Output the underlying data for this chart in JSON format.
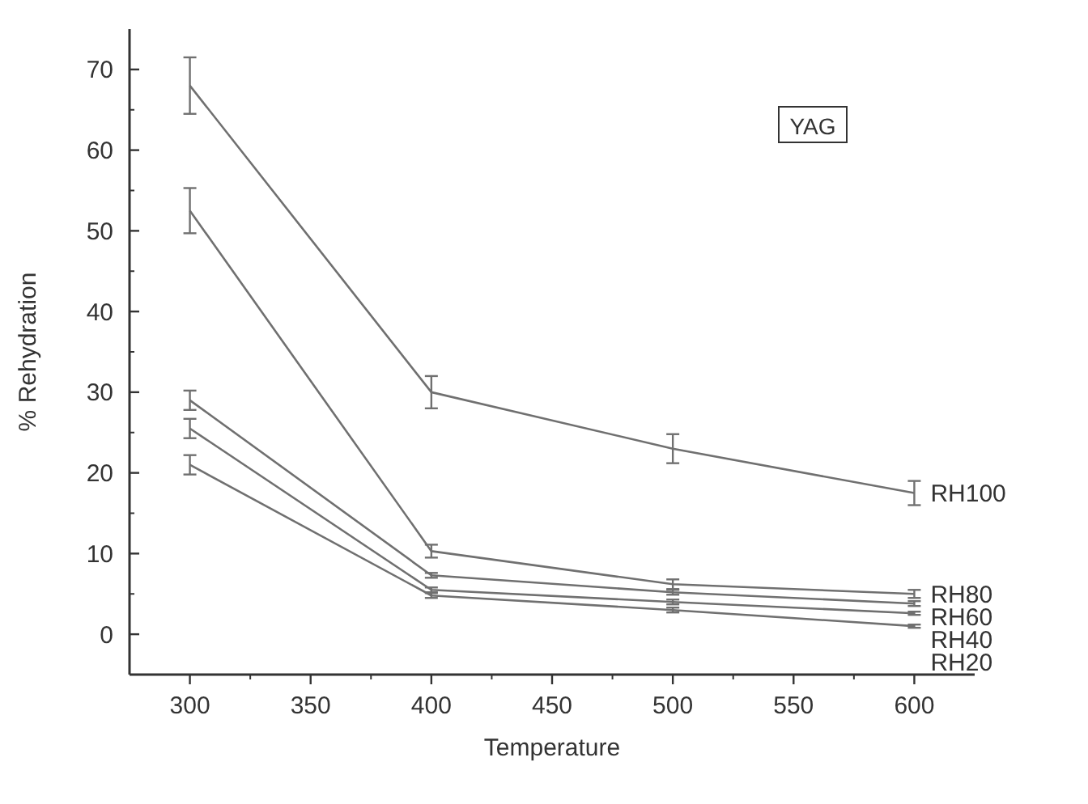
{
  "chart_data": {
    "type": "line",
    "xlabel": "Temperature",
    "ylabel": "% Rehydration",
    "x": [
      300,
      400,
      500,
      600
    ],
    "xlim": [
      275,
      625
    ],
    "xticks": [
      300,
      350,
      400,
      450,
      500,
      550,
      600
    ],
    "ylim": [
      -5,
      75
    ],
    "yticks": [
      0,
      10,
      20,
      30,
      40,
      50,
      60,
      70
    ],
    "grid": false,
    "marker": "none",
    "line_style": "solid",
    "annotations": [
      "YAG"
    ],
    "series": [
      {
        "name": "RH100",
        "color": "#707070",
        "values": [
          68,
          30,
          23,
          17.5
        ],
        "errors": [
          3.5,
          2,
          1.8,
          1.5
        ]
      },
      {
        "name": "RH80",
        "color": "#707070",
        "values": [
          52.5,
          10.3,
          6.2,
          5.0
        ],
        "errors": [
          2.8,
          0.8,
          0.6,
          0.5
        ]
      },
      {
        "name": "RH60",
        "color": "#707070",
        "values": [
          29,
          7.3,
          5.2,
          3.8
        ],
        "errors": [
          1.2,
          0.3,
          0.3,
          0.3
        ]
      },
      {
        "name": "RH40",
        "color": "#707070",
        "values": [
          25.5,
          5.5,
          4.0,
          2.6
        ],
        "errors": [
          1.2,
          0.3,
          0.3,
          0.2
        ]
      },
      {
        "name": "RH20",
        "color": "#707070",
        "values": [
          21,
          4.8,
          3.0,
          1.0
        ],
        "errors": [
          1.2,
          0.3,
          0.3,
          0.2
        ]
      }
    ]
  }
}
